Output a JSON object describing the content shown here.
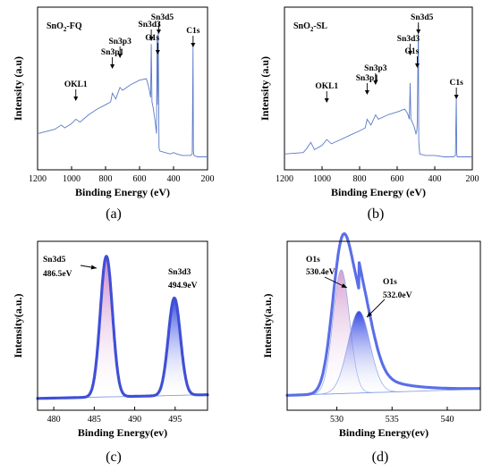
{
  "panel_labels": [
    "(a)",
    "(b)",
    "(c)",
    "(d)"
  ],
  "chart_data": [
    {
      "type": "line",
      "panel": "(a)",
      "sample_label_parts": [
        "SnO",
        "2",
        "-FQ"
      ],
      "xlabel": "Binding Energy (eV)",
      "ylabel": "Intensity (a.u)",
      "xlim": [
        1200,
        200
      ],
      "x_reversed": true,
      "x_ticks": [
        1200,
        1000,
        800,
        600,
        400,
        200
      ],
      "y_ticks": [],
      "series": [
        {
          "x": [
            1200,
            1100,
            1060,
            1040,
            1000,
            975,
            950,
            900,
            850,
            800,
            770,
            760,
            740,
            715,
            700,
            650,
            600,
            560,
            545,
            535,
            531,
            527,
            520,
            510,
            500,
            497,
            495,
            493,
            490,
            487,
            485,
            480,
            450,
            420,
            400,
            380,
            350,
            320,
            300,
            290,
            285,
            283,
            280,
            260,
            230,
            200
          ],
          "y": [
            20,
            23,
            26,
            24,
            27,
            30,
            28,
            33,
            37,
            40,
            42,
            48,
            44,
            52,
            50,
            54,
            57,
            58,
            52,
            45,
            82,
            42,
            38,
            30,
            20,
            88,
            40,
            50,
            92,
            35,
            10,
            8,
            7,
            6,
            7,
            6,
            5,
            5,
            5,
            6,
            80,
            8,
            5,
            4,
            4,
            4
          ]
        }
      ],
      "annotations": [
        {
          "text": "OKL1",
          "x": 975
        },
        {
          "text": "Sn3p1",
          "x": 760
        },
        {
          "text": "Sn3p3",
          "x": 715
        },
        {
          "text": "Sn3d3",
          "x": 531
        },
        {
          "text": "O1s",
          "x": 493
        },
        {
          "text": "Sn3d5",
          "x": 487
        },
        {
          "text": "C1s",
          "x": 285
        }
      ]
    },
    {
      "type": "line",
      "panel": "(b)",
      "sample_label_parts": [
        "SnO",
        "2",
        "-SL"
      ],
      "xlabel": "Binding Energy (eV)",
      "ylabel": "Intensity (a.u)",
      "xlim": [
        1200,
        200
      ],
      "x_reversed": true,
      "x_ticks": [
        1200,
        1000,
        800,
        600,
        400,
        200
      ],
      "y_ticks": [],
      "series": [
        {
          "x": [
            1200,
            1100,
            1080,
            1060,
            1040,
            1000,
            975,
            950,
            900,
            850,
            800,
            770,
            760,
            740,
            715,
            700,
            650,
            600,
            560,
            545,
            535,
            531,
            527,
            520,
            510,
            500,
            495,
            493,
            490,
            487,
            485,
            480,
            450,
            420,
            400,
            350,
            300,
            290,
            285,
            283,
            280,
            250,
            200
          ],
          "y": [
            6,
            7,
            10,
            14,
            9,
            12,
            16,
            13,
            16,
            19,
            22,
            24,
            30,
            26,
            33,
            30,
            33,
            35,
            37,
            34,
            30,
            55,
            30,
            28,
            25,
            20,
            22,
            28,
            65,
            95,
            15,
            6,
            5,
            5,
            5,
            4,
            4,
            5,
            45,
            6,
            4,
            4,
            4
          ]
        }
      ],
      "annotations": [
        {
          "text": "OKL1",
          "x": 975
        },
        {
          "text": "Sn3p1",
          "x": 760
        },
        {
          "text": "Sn3p3",
          "x": 715
        },
        {
          "text": "Sn3d3",
          "x": 531
        },
        {
          "text": "O1s",
          "x": 493
        },
        {
          "text": "Sn3d5",
          "x": 487
        },
        {
          "text": "C1s",
          "x": 285
        }
      ]
    },
    {
      "type": "line",
      "panel": "(c)",
      "xlabel": "Binding Energy(ev)",
      "ylabel": "Intensity(a.u.)",
      "xlim": [
        478,
        499
      ],
      "x_reversed": false,
      "x_ticks": [
        480,
        485,
        490,
        495
      ],
      "y_ticks": [],
      "colors": {
        "data": "#3f4fd6",
        "peak1": "#c97ac4",
        "peak2": "#2a3fe0",
        "background": "#8aa4e6"
      },
      "peaks": [
        {
          "label": "Sn3d5",
          "position_text": "486.5eV",
          "center": 486.5,
          "height": 91,
          "width": 0.75
        },
        {
          "label": "Sn3d3",
          "position_text": "494.9eV",
          "center": 494.9,
          "height": 63,
          "width": 0.75
        }
      ],
      "background_level": 3
    },
    {
      "type": "line",
      "panel": "(d)",
      "xlabel": "Binding Energy(ev)",
      "ylabel": "Intensity(a.u.)",
      "xlim": [
        525.5,
        543
      ],
      "x_reversed": false,
      "x_ticks": [
        530,
        535,
        540
      ],
      "y_ticks": [],
      "colors": {
        "data": "#5a6ee6",
        "peak1": "#d49bd0",
        "peak2": "#2a3fe0",
        "background": "#8aa4e6"
      },
      "peaks": [
        {
          "label": "O1s",
          "position_text": "530.4eV",
          "center": 530.4,
          "height": 80,
          "width": 0.75
        },
        {
          "label": "O1s",
          "position_text": "532.0eV",
          "center": 532.0,
          "height": 53,
          "width": 1.0
        }
      ],
      "background_level": 5
    }
  ]
}
